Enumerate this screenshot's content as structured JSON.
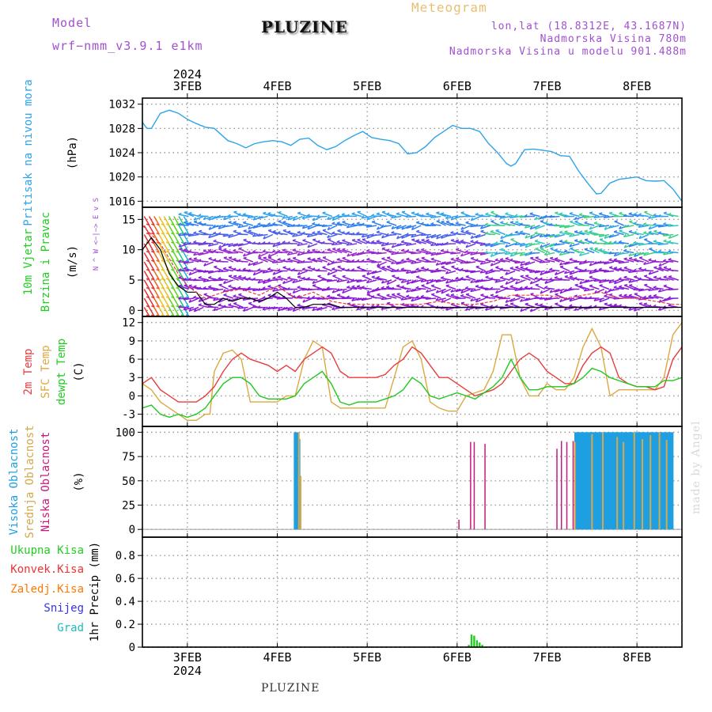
{
  "header": {
    "model_label": "Model",
    "model_name": "wrf−nmm_v3.9.1  e1km",
    "title": "PLUZINE",
    "subtitle": "Meteogram",
    "coords": "lon,lat (18.8312E, 43.1687N)",
    "elev": "Nadmorska Visina 780m",
    "elev_model": "Nadmorska Visina u modelu 901.488m",
    "footer": "PLUZINE",
    "credit": "made by Angel",
    "year_top": "2024",
    "year_bottom": "2024"
  },
  "colors": {
    "pressure": "#2ea4e8",
    "temp2m": "#e83c3c",
    "sfc": "#dca840",
    "dew": "#1fc81f",
    "hi_cloud": "#1e9fe2",
    "mid_cloud": "#d4a84c",
    "low_cloud": "#c8187c",
    "precip": "#22cc22",
    "purple": "#a050d0",
    "green_lbl": "#22cc22",
    "red_lbl": "#ee3333",
    "orange_lbl": "#ff7700",
    "blue_lbl": "#3333ee",
    "cyan_lbl": "#22bbbb"
  },
  "chart_data": [
    {
      "type": "line",
      "panel": "pressure",
      "ylabel_lines": [
        "Pritisak na nivou mora",
        "(hPa)"
      ],
      "ylim": [
        1015,
        1033
      ],
      "yticks": [
        1016,
        1020,
        1024,
        1028,
        1032
      ],
      "x_days": [
        "3FEB",
        "4FEB",
        "5FEB",
        "6FEB",
        "7FEB",
        "8FEB"
      ],
      "x_range": [
        2.5,
        8.5
      ],
      "series": [
        {
          "x": [
            2.5,
            2.55,
            2.6,
            2.7,
            2.8,
            2.9,
            3.0,
            3.1,
            3.2,
            3.3,
            3.45,
            3.55,
            3.65,
            3.75,
            3.85,
            3.95,
            4.05,
            4.15,
            4.25,
            4.35,
            4.45,
            4.55,
            4.65,
            4.75,
            4.85,
            4.95,
            5.05,
            5.15,
            5.25,
            5.35,
            5.45,
            5.55,
            5.65,
            5.75,
            5.85,
            5.95,
            6.05,
            6.15,
            6.25,
            6.35,
            6.45,
            6.55,
            6.6,
            6.65,
            6.75,
            6.85,
            6.95,
            7.05,
            7.15,
            7.25,
            7.35,
            7.45,
            7.55,
            7.6,
            7.7,
            7.8,
            7.9,
            8.0,
            8.1,
            8.2,
            8.3,
            8.4,
            8.5
          ],
          "values": [
            1029,
            1028,
            1028,
            1030.5,
            1031,
            1030.5,
            1029.5,
            1028.8,
            1028.2,
            1028,
            1026,
            1025.5,
            1024.8,
            1025.5,
            1025.8,
            1026,
            1025.8,
            1025.2,
            1026.2,
            1026.4,
            1025.2,
            1024.5,
            1025,
            1026,
            1026.8,
            1027.5,
            1026.5,
            1026.2,
            1026,
            1025.5,
            1023.8,
            1024,
            1025,
            1026.5,
            1027.5,
            1028.5,
            1028,
            1028,
            1027.5,
            1025.5,
            1024,
            1022.2,
            1021.8,
            1022.2,
            1024.5,
            1024.6,
            1024.4,
            1024.2,
            1023.5,
            1023.4,
            1021,
            1019,
            1017.2,
            1017.3,
            1019,
            1019.6,
            1019.8,
            1020,
            1019.4,
            1019.3,
            1019.4,
            1018,
            1016
          ]
        }
      ]
    },
    {
      "type": "line",
      "panel": "wind",
      "ylabel_lines": [
        "10m Vjetar",
        "Brzina i Pravac",
        "(m/s)"
      ],
      "compass": "N\n^\nW <−|−> E\nv\nS",
      "ylim": [
        -1,
        17
      ],
      "yticks": [
        0,
        5,
        10,
        15
      ],
      "series": [
        {
          "name": "speed",
          "x": [
            2.5,
            2.6,
            2.7,
            2.8,
            2.9,
            3.0,
            3.1,
            3.2,
            3.3,
            3.4,
            3.5,
            3.6,
            3.7,
            3.8,
            3.9,
            4.0,
            4.1,
            4.2,
            4.3,
            4.4,
            4.5,
            4.6,
            4.7,
            4.8,
            4.9,
            5.0,
            5.2,
            5.4,
            5.6,
            5.8,
            6.0,
            6.2,
            6.4,
            6.6,
            6.8,
            7.0,
            7.2,
            7.4,
            7.6,
            7.8,
            8.0,
            8.2,
            8.4,
            8.5
          ],
          "values": [
            10,
            12,
            10,
            6,
            4,
            3,
            3,
            1,
            1,
            2,
            1.5,
            2,
            2,
            1.5,
            2,
            3,
            2,
            0.5,
            0.5,
            1,
            1,
            1,
            0.5,
            0.5,
            0.5,
            0.5,
            0.5,
            0.5,
            0.5,
            0.5,
            0.5,
            0.5,
            0.5,
            0.5,
            0.5,
            0.5,
            0.5,
            0.5,
            0.5,
            0.5,
            0.5,
            0.5,
            0.5,
            0.5
          ]
        },
        {
          "name": "gust",
          "x": [
            2.5,
            2.7,
            2.9,
            3.0,
            3.2,
            3.4,
            3.6,
            3.8,
            4.0,
            4.2,
            4.4,
            4.6,
            4.8,
            5.0,
            5.2,
            5.4,
            5.6,
            5.8,
            6.0,
            6.2,
            6.4,
            6.6,
            6.8,
            7.0,
            7.2,
            7.4,
            7.6,
            7.8,
            8.0,
            8.2,
            8.4,
            8.5
          ],
          "values": [
            14,
            11,
            6,
            4,
            2,
            3,
            3.5,
            2.5,
            4,
            2,
            3,
            1.5,
            1,
            1,
            1,
            1,
            1,
            1.5,
            1,
            1,
            1.5,
            2.5,
            2.5,
            2.5,
            2,
            2.5,
            3,
            2,
            2,
            1.5,
            1,
            1
          ]
        }
      ]
    },
    {
      "type": "line",
      "panel": "temperature",
      "ylabel_lines": [
        "2m Temp",
        "SFC Temp",
        "dewpt Temp",
        "(C)"
      ],
      "ylim": [
        -5,
        13
      ],
      "yticks": [
        -3,
        0,
        3,
        6,
        9,
        12
      ],
      "series": [
        {
          "name": "2m Temp",
          "x": [
            2.5,
            2.6,
            2.7,
            2.8,
            2.9,
            3.0,
            3.1,
            3.2,
            3.3,
            3.4,
            3.5,
            3.6,
            3.7,
            3.8,
            3.9,
            4.0,
            4.1,
            4.2,
            4.3,
            4.4,
            4.5,
            4.6,
            4.7,
            4.8,
            4.9,
            5.0,
            5.1,
            5.2,
            5.3,
            5.4,
            5.5,
            5.6,
            5.7,
            5.8,
            5.9,
            6.0,
            6.1,
            6.2,
            6.3,
            6.4,
            6.5,
            6.6,
            6.7,
            6.8,
            6.9,
            7.0,
            7.1,
            7.2,
            7.3,
            7.4,
            7.5,
            7.6,
            7.7,
            7.8,
            7.9,
            8.0,
            8.1,
            8.2,
            8.3,
            8.4,
            8.5
          ],
          "values": [
            2,
            3,
            1,
            0,
            -1,
            -1,
            -1,
            0,
            1.5,
            4,
            6,
            7,
            6,
            5.5,
            5,
            4,
            5,
            4,
            6,
            7,
            8,
            7,
            4,
            3,
            3,
            3,
            3,
            3.5,
            5,
            6,
            8,
            7,
            5,
            3,
            3,
            2,
            1,
            0,
            0.5,
            1,
            2,
            4,
            6,
            7,
            6,
            4,
            3,
            2,
            2,
            5,
            7,
            8,
            7,
            3,
            2,
            1.5,
            1.5,
            1,
            1.5,
            6,
            8
          ]
        },
        {
          "name": "SFC Temp",
          "x": [
            2.5,
            2.6,
            2.7,
            2.8,
            2.9,
            3.0,
            3.1,
            3.2,
            3.25,
            3.3,
            3.4,
            3.5,
            3.6,
            3.7,
            3.8,
            3.9,
            4.0,
            4.1,
            4.2,
            4.3,
            4.4,
            4.5,
            4.6,
            4.7,
            4.8,
            4.9,
            5.0,
            5.1,
            5.2,
            5.3,
            5.4,
            5.5,
            5.6,
            5.7,
            5.8,
            5.9,
            6.0,
            6.1,
            6.2,
            6.3,
            6.4,
            6.5,
            6.6,
            6.7,
            6.8,
            6.9,
            7.0,
            7.1,
            7.2,
            7.3,
            7.4,
            7.5,
            7.6,
            7.7,
            7.8,
            7.9,
            8.0,
            8.1,
            8.2,
            8.3,
            8.4,
            8.5
          ],
          "values": [
            2,
            1,
            -1,
            -2,
            -3,
            -4,
            -4,
            -3,
            -3,
            4,
            7,
            7.5,
            6,
            -1,
            -1,
            -1,
            -1,
            0,
            0,
            6,
            9,
            8,
            -1,
            -2,
            -2,
            -2,
            -2,
            -2,
            -2,
            3,
            8,
            9,
            6,
            -1,
            -2,
            -2.5,
            -2.5,
            0,
            0.5,
            1,
            4,
            10,
            10,
            3,
            0,
            0,
            2,
            1,
            1,
            3,
            8,
            11,
            8,
            0,
            1,
            1,
            1,
            1,
            1,
            3,
            10,
            12
          ]
        },
        {
          "name": "dewpt Temp",
          "x": [
            2.5,
            2.6,
            2.7,
            2.8,
            2.9,
            3.0,
            3.1,
            3.2,
            3.3,
            3.4,
            3.5,
            3.6,
            3.7,
            3.8,
            3.9,
            4.0,
            4.1,
            4.2,
            4.3,
            4.4,
            4.5,
            4.6,
            4.7,
            4.8,
            4.9,
            5.0,
            5.1,
            5.2,
            5.3,
            5.4,
            5.5,
            5.6,
            5.7,
            5.8,
            5.9,
            6.0,
            6.1,
            6.2,
            6.3,
            6.4,
            6.5,
            6.6,
            6.7,
            6.8,
            6.9,
            7.0,
            7.1,
            7.2,
            7.3,
            7.4,
            7.5,
            7.6,
            7.7,
            7.8,
            7.9,
            8.0,
            8.1,
            8.2,
            8.3,
            8.4,
            8.5
          ],
          "values": [
            -2,
            -1.5,
            -3,
            -3.5,
            -3,
            -3.5,
            -3,
            -2,
            0,
            2,
            3,
            3,
            2,
            0,
            -0.5,
            -0.5,
            -0.5,
            0,
            2,
            3,
            4,
            2,
            -1,
            -1.5,
            -1,
            -1,
            -1,
            -0.5,
            0,
            1,
            3,
            2,
            0,
            -0.5,
            0,
            0.5,
            0,
            -0.5,
            0.5,
            1.5,
            3,
            6,
            3,
            1,
            1,
            1.5,
            1.5,
            1.5,
            2,
            3,
            4.5,
            4,
            3,
            2.5,
            2,
            1.5,
            1.5,
            1.5,
            2.5,
            2.5,
            3
          ]
        }
      ]
    },
    {
      "type": "bar",
      "panel": "clouds",
      "ylabel_lines": [
        "Visoka Oblacnost",
        "Srednja Oblacnost",
        "Niska Oblacnost",
        "(%)"
      ],
      "ylim": [
        -8,
        106
      ],
      "yticks": [
        0,
        25,
        50,
        75,
        100
      ],
      "series": [
        {
          "name": "Visoka Oblacnost",
          "x": [
            4.21,
            4.23,
            7.33,
            7.36,
            7.39,
            7.42,
            7.45,
            7.48,
            7.51,
            7.54,
            7.57,
            7.6,
            7.63,
            7.66,
            7.69,
            7.72,
            7.75,
            7.78,
            7.81,
            7.84,
            7.87,
            7.9,
            7.93,
            7.96,
            7.99,
            8.02,
            8.05,
            8.08,
            8.11,
            8.14,
            8.17,
            8.2,
            8.23,
            8.26,
            8.29,
            8.32,
            8.35,
            8.38
          ],
          "values": [
            100,
            93,
            100,
            100,
            100,
            100,
            100,
            100,
            100,
            100,
            100,
            100,
            100,
            100,
            100,
            100,
            100,
            100,
            100,
            100,
            100,
            100,
            100,
            100,
            100,
            100,
            100,
            100,
            100,
            100,
            100,
            100,
            100,
            100,
            100,
            100,
            100,
            100
          ]
        },
        {
          "name": "Srednja Oblacnost",
          "x": [
            4.24,
            4.26,
            7.31,
            7.5,
            7.62,
            7.78,
            7.85,
            7.97,
            8.06,
            8.15,
            8.25,
            8.33
          ],
          "values": [
            100,
            55,
            90,
            98,
            100,
            95,
            90,
            100,
            93,
            97,
            100,
            92
          ]
        },
        {
          "name": "Niska Oblacnost",
          "x": [
            6.02,
            6.15,
            6.19,
            6.31,
            7.11,
            7.16,
            7.22,
            7.29
          ],
          "values": [
            10,
            90,
            90,
            88,
            83,
            91,
            90,
            91
          ]
        }
      ]
    },
    {
      "type": "bar",
      "panel": "precip",
      "ylabel_lines": [
        "1hr Precip (mm)"
      ],
      "legend": [
        "Ukupna Kisa",
        "Konvek.Kisa",
        "Zaledj.Kisa",
        "Snijeg",
        "Grad"
      ],
      "ylim": [
        0,
        0.96
      ],
      "yticks": [
        0,
        0.2,
        0.4,
        0.6,
        0.8
      ],
      "series": [
        {
          "name": "Ukupna Kisa",
          "x": [
            6.13,
            6.16,
            6.19,
            6.22,
            6.25,
            6.28
          ],
          "values": [
            0.02,
            0.11,
            0.1,
            0.06,
            0.04,
            0.02
          ]
        }
      ]
    }
  ]
}
